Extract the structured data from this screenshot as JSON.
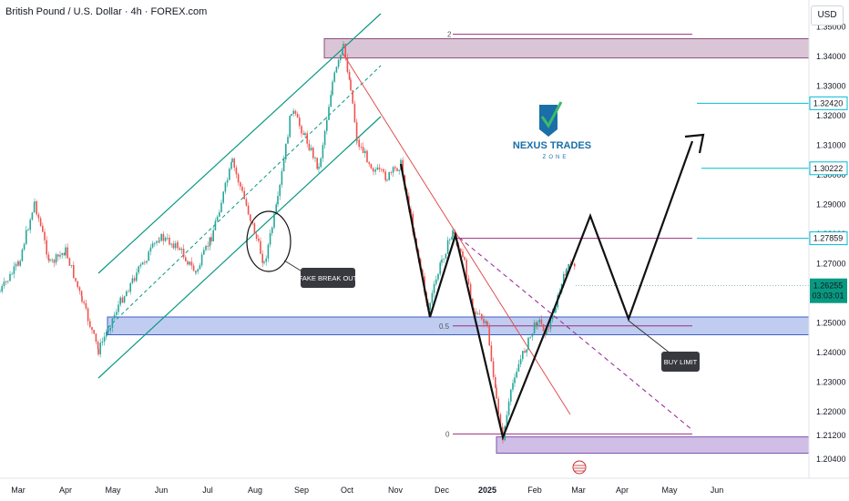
{
  "header": {
    "title": "British Pound / U.S. Dollar · 4h · FOREX.com",
    "currency": "USD"
  },
  "chart_data": {
    "type": "line",
    "title": "British Pound / U.S. Dollar · 4h · FOREX.com",
    "ylim": [
      1.2,
      1.359
    ],
    "y_ticks": [
      "1.20400",
      "1.21200",
      "1.22000",
      "1.23000",
      "1.24000",
      "1.25000",
      "1.26000",
      "1.27000",
      "1.28000",
      "1.29000",
      "1.30000",
      "1.31000",
      "1.32000",
      "1.33000",
      "1.34000",
      "1.35000"
    ],
    "x_ticks": [
      "Mar",
      "Apr",
      "May",
      "Jun",
      "Jul",
      "Aug",
      "Sep",
      "Oct",
      "Nov",
      "Dec",
      "2025",
      "Feb",
      "Mar",
      "Apr",
      "May",
      "Jun"
    ],
    "price_tags": [
      {
        "label": "1.32420",
        "value": 1.3242,
        "style": "outline"
      },
      {
        "label": "1.30222",
        "value": 1.30222,
        "style": "outline"
      },
      {
        "label": "1.27859",
        "value": 1.27859,
        "style": "outline"
      },
      {
        "label": "1.26255",
        "value": 1.26255,
        "style": "filled"
      }
    ],
    "countdown": "03:03:01",
    "zones": [
      {
        "name": "supply",
        "from": 1.3395,
        "to": 1.346
      },
      {
        "name": "support",
        "from": 1.246,
        "to": 1.252
      },
      {
        "name": "demand",
        "from": 1.206,
        "to": 1.2115
      }
    ],
    "fib_labels": [
      "2",
      "0.5",
      "0"
    ],
    "annotations": [
      "FAKE BREAK OUT",
      "BUY LIMIT"
    ],
    "logo": {
      "name": "NEXUS TRADES",
      "sub": "ZONE"
    },
    "colors": {
      "up": "#26a69a",
      "down": "#ef5350",
      "channel": "#089981",
      "fib": "#9c27b0",
      "zone_blue": "#4a6fd6",
      "zone_purple": "#8e5ea8",
      "tag": "#00bcd4"
    }
  }
}
